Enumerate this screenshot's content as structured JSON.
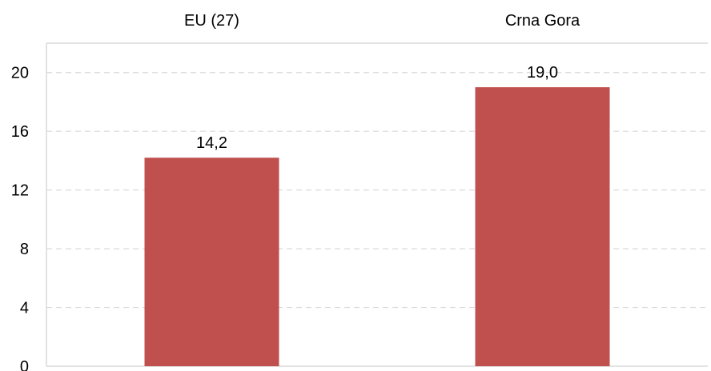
{
  "chart_data": {
    "type": "bar",
    "categories": [
      "EU (27)",
      "Crna Gora"
    ],
    "values": [
      14.2,
      19.0
    ],
    "data_labels": [
      "14,2",
      "19,0"
    ],
    "ylim": [
      0,
      22
    ],
    "yticks": [
      0,
      4,
      8,
      12,
      16,
      20
    ],
    "ytick_labels": [
      "0",
      "4",
      "8",
      "12",
      "16",
      "20"
    ],
    "grid": true,
    "legend": "none",
    "category_labels_position": "top",
    "bar_color": "#C0504D",
    "grid_color": "#D9D9D9",
    "axis_color": "#D9D9D9"
  }
}
